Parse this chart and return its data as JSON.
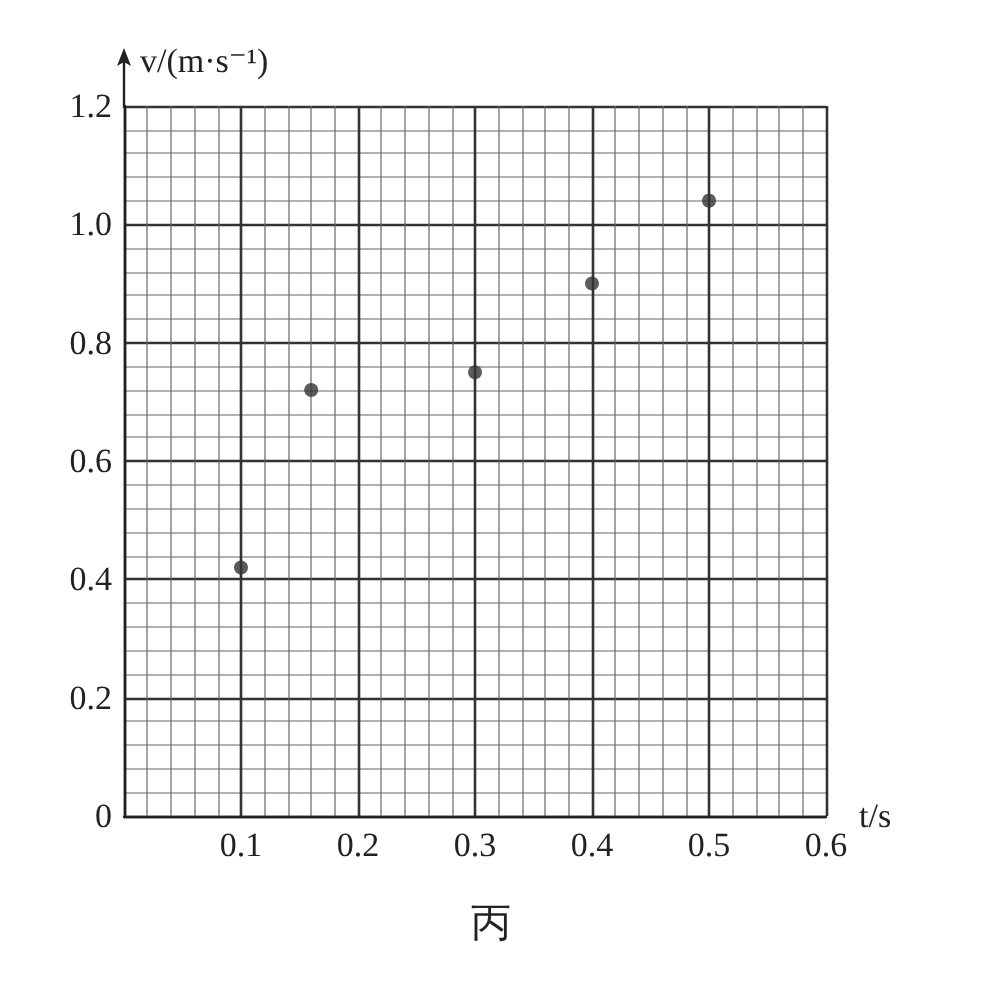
{
  "chart_data": {
    "type": "scatter",
    "xlabel": "t/s",
    "ylabel": "v/(m·s⁻¹)",
    "annotations": [
      "丙"
    ],
    "x": [
      0.1,
      0.16,
      0.3,
      0.4,
      0.5
    ],
    "values": [
      0.42,
      0.72,
      0.75,
      0.9,
      1.04
    ],
    "color": "#333333",
    "marker": "circle",
    "grid": true,
    "xlim": [
      0,
      0.6
    ],
    "xticks": [
      {
        "value": 0,
        "label": null
      },
      0.1,
      0.2,
      0.3,
      0.4,
      0.5,
      0.6
    ],
    "ylim": [
      0,
      1.2
    ],
    "yticks": [
      0,
      0.2,
      0.4,
      0.6,
      0.8,
      {
        "value": 1,
        "label": "1.0"
      },
      1.2
    ]
  }
}
